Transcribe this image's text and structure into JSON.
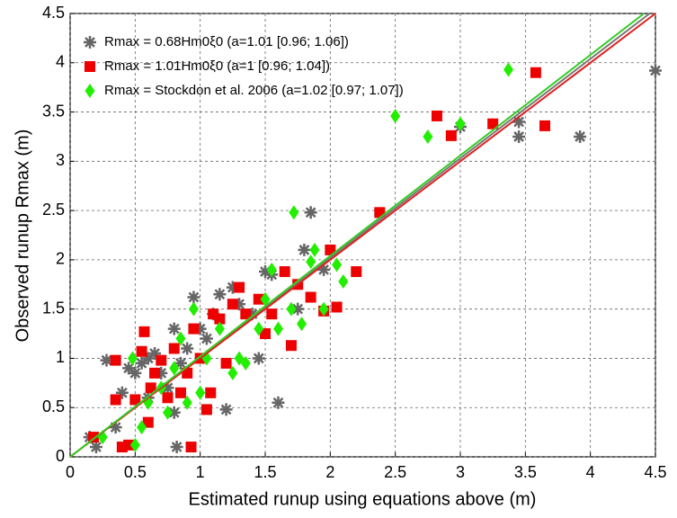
{
  "chart_data": {
    "type": "scatter",
    "xlabel": "Estimated runup using equations above (m)",
    "ylabel": "Observed runup Rmax (m)",
    "xlim": [
      0,
      4.5
    ],
    "ylim": [
      0,
      4.5
    ],
    "xticks": [
      0,
      0.5,
      1,
      1.5,
      2,
      2.5,
      3,
      3.5,
      4,
      4.5
    ],
    "yticks": [
      0,
      0.5,
      1,
      1.5,
      2,
      2.5,
      3,
      3.5,
      4,
      4.5
    ],
    "grid": true,
    "legend": "upper left",
    "series": [
      {
        "name": "Rmax = 0.68Hm0ξ0 (a=1.01 [0.96; 1.06])",
        "color": "#666666",
        "marker": "asterisk",
        "slope": 1.01,
        "x": [
          0.15,
          0.2,
          0.28,
          0.35,
          0.4,
          0.45,
          0.5,
          0.55,
          0.6,
          0.65,
          0.7,
          0.75,
          0.8,
          0.82,
          0.85,
          0.9,
          0.95,
          1.0,
          1.05,
          1.1,
          1.15,
          1.2,
          1.25,
          1.3,
          1.4,
          1.45,
          1.5,
          1.55,
          1.6,
          1.75,
          1.8,
          1.85,
          1.95,
          3.0,
          3.45,
          3.45,
          3.92,
          4.5,
          0.8,
          0.6
        ],
        "values": [
          0.2,
          0.1,
          0.98,
          0.3,
          0.65,
          0.9,
          0.85,
          0.95,
          1.0,
          1.05,
          0.85,
          0.7,
          0.45,
          0.1,
          0.95,
          1.1,
          1.62,
          1.3,
          1.2,
          1.45,
          1.65,
          0.48,
          1.72,
          1.55,
          1.45,
          1.0,
          1.88,
          1.85,
          0.55,
          1.5,
          2.1,
          2.48,
          1.9,
          3.35,
          3.4,
          3.25,
          3.25,
          3.92,
          1.3,
          0.6
        ]
      },
      {
        "name": "Rmax = 1.01Hm0ξ0 (a=1 [0.96; 1.04])",
        "color": "#ee0000",
        "marker": "square",
        "slope": 1,
        "x": [
          0.18,
          0.35,
          0.35,
          0.4,
          0.45,
          0.5,
          0.55,
          0.57,
          0.6,
          0.62,
          0.65,
          0.7,
          0.75,
          0.8,
          0.85,
          0.9,
          0.93,
          0.95,
          1.0,
          1.05,
          1.08,
          1.1,
          1.15,
          1.2,
          1.25,
          1.3,
          1.35,
          1.45,
          1.5,
          1.55,
          1.65,
          1.7,
          1.75,
          1.85,
          1.95,
          2.0,
          2.05,
          2.2,
          2.38,
          2.82,
          2.93,
          3.25,
          3.58,
          3.65
        ],
        "values": [
          0.2,
          0.58,
          0.98,
          0.1,
          0.12,
          0.58,
          1.07,
          1.27,
          0.35,
          0.7,
          0.85,
          0.98,
          0.6,
          1.1,
          0.65,
          0.85,
          0.1,
          1.3,
          1.0,
          0.48,
          0.65,
          1.45,
          1.4,
          0.95,
          1.55,
          1.72,
          1.45,
          1.6,
          1.25,
          1.45,
          1.88,
          1.13,
          1.75,
          1.62,
          1.48,
          2.1,
          1.52,
          1.88,
          2.48,
          3.46,
          3.26,
          3.38,
          3.9,
          3.36
        ]
      },
      {
        "name": "Rmax = Stockdon et al. 2006 (a=1.02 [0.97; 1.07])",
        "color": "#22ee00",
        "marker": "diamond",
        "slope": 1.02,
        "x": [
          0.25,
          0.48,
          0.5,
          0.55,
          0.6,
          0.7,
          0.75,
          0.8,
          0.85,
          0.9,
          0.95,
          1.0,
          1.05,
          1.15,
          1.25,
          1.3,
          1.35,
          1.45,
          1.5,
          1.55,
          1.6,
          1.7,
          1.72,
          1.78,
          1.85,
          1.88,
          1.95,
          2.1,
          2.5,
          2.75,
          3.0,
          3.37,
          2.05
        ],
        "values": [
          0.2,
          1.0,
          0.12,
          0.3,
          0.55,
          0.7,
          0.45,
          0.9,
          1.2,
          0.55,
          1.5,
          0.65,
          1.0,
          1.3,
          0.85,
          1.0,
          0.95,
          1.3,
          1.6,
          1.9,
          1.3,
          1.5,
          2.48,
          1.35,
          1.98,
          2.1,
          1.5,
          1.78,
          3.46,
          3.25,
          3.38,
          3.93,
          1.95
        ]
      }
    ]
  }
}
